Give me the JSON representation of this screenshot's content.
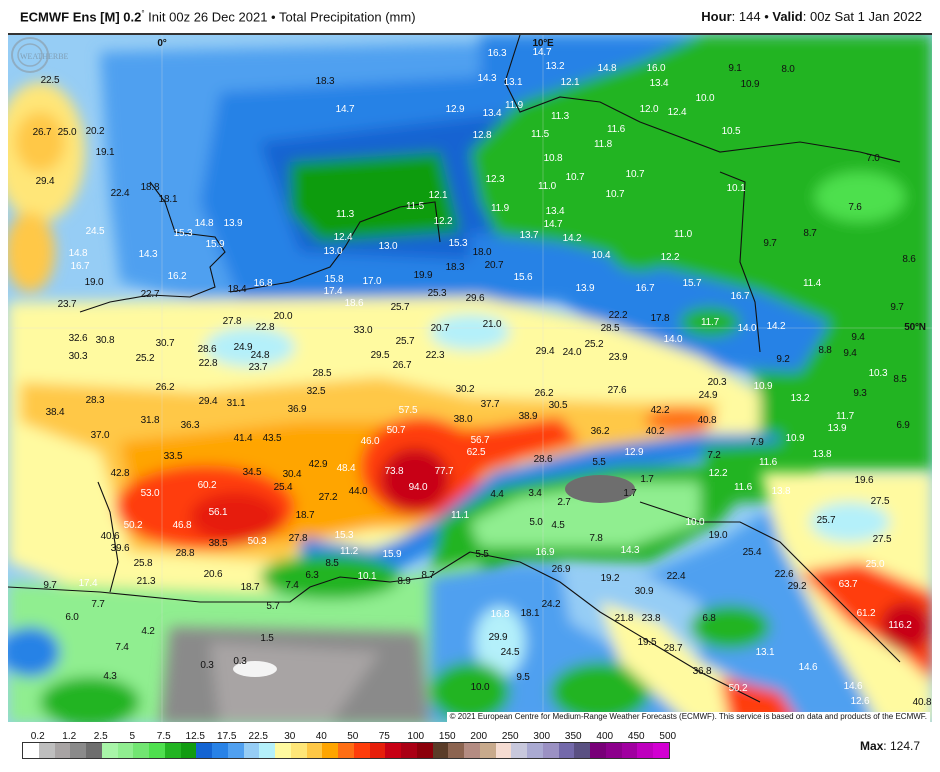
{
  "header": {
    "model": "ECMWF Ens [M] 0.2",
    "degree": "°",
    "init": "Init 00z 26 Dec 2021",
    "separator": "•",
    "product": "Total Precipitation (mm)",
    "hour_label": "Hour",
    "hour_value": ": 144",
    "valid_label": "Valid",
    "valid_value": ": 00z Sat 1 Jan 2022"
  },
  "map": {
    "graticule_labels": [
      "0°",
      "10°E",
      "50°N"
    ],
    "labels": [
      "18.3",
      "14.7",
      "12.9",
      "22.5",
      "20.2",
      "26.7",
      "25.0",
      "19.1",
      "29.4",
      "22.4",
      "18.8",
      "18.1",
      "24.5",
      "14.8",
      "13.9",
      "15.3",
      "15.9",
      "14.8",
      "16.7",
      "14.3",
      "16.2",
      "19.0",
      "22.7",
      "23.7",
      "18.4",
      "16.8",
      "15.8",
      "17.4",
      "18.6",
      "17.0",
      "11.3",
      "11.5",
      "12.1",
      "12.2",
      "12.4",
      "13.0",
      "13.0",
      "15.3",
      "18.3",
      "19.9",
      "25.3",
      "27.8",
      "22.8",
      "20.0",
      "32.6",
      "30.8",
      "30.3",
      "30.7",
      "28.6",
      "24.9",
      "24.8",
      "25.2",
      "22.8",
      "23.7",
      "33.0",
      "25.7",
      "25.7",
      "20.7",
      "29.5",
      "26.7",
      "22.3",
      "28.5",
      "16.3",
      "14.7",
      "14.3",
      "13.1",
      "13.2",
      "12.1",
      "14.8",
      "16.0",
      "13.4",
      "9.1",
      "8.0",
      "10.9",
      "10.0",
      "11.9",
      "11.3",
      "12.0",
      "12.4",
      "13.4",
      "12.8",
      "11.5",
      "11.6",
      "11.8",
      "10.5",
      "10.8",
      "12.3",
      "11.0",
      "10.7",
      "10.7",
      "10.7",
      "10.1",
      "7.0",
      "7.6",
      "11.9",
      "13.4",
      "13.7",
      "14.7",
      "14.2",
      "18.0",
      "20.7",
      "15.6",
      "10.4",
      "11.0",
      "12.2",
      "9.7",
      "8.7",
      "8.6",
      "13.9",
      "16.7",
      "15.7",
      "11.4",
      "16.7",
      "9.7",
      "29.6",
      "21.0",
      "22.2",
      "17.8",
      "11.7",
      "14.0",
      "14.2",
      "28.5",
      "14.0",
      "9.4",
      "8.8",
      "9.4",
      "29.4",
      "24.0",
      "25.2",
      "23.9",
      "9.2",
      "10.3",
      "26.2",
      "32.5",
      "28.3",
      "29.4",
      "31.1",
      "36.9",
      "30.2",
      "38.4",
      "31.8",
      "36.3",
      "57.5",
      "37.0",
      "41.4",
      "43.5",
      "50.7",
      "46.0",
      "33.5",
      "38.0",
      "42.9",
      "48.4",
      "34.5",
      "30.4",
      "42.8",
      "73.8",
      "77.7",
      "53.0",
      "60.2",
      "25.4",
      "27.2",
      "44.0",
      "94.0",
      "56.1",
      "18.7",
      "11.1",
      "50.2",
      "46.8",
      "40.6",
      "39.6",
      "38.5",
      "50.3",
      "27.8",
      "15.3",
      "28.8",
      "11.2",
      "15.9",
      "25.8",
      "8.5",
      "20.6",
      "6.3",
      "10.1",
      "8.9",
      "8.7",
      "17.4",
      "21.3",
      "18.7",
      "7.4",
      "9.7",
      "7.7",
      "6.0",
      "5.7",
      "4.2",
      "1.5",
      "7.4",
      "0.3",
      "0.3",
      "4.3",
      "20.3",
      "10.9",
      "8.5",
      "27.6",
      "26.2",
      "30.5",
      "24.9",
      "9.3",
      "37.7",
      "42.2",
      "13.2",
      "38.9",
      "40.8",
      "11.7",
      "6.9",
      "36.2",
      "40.2",
      "10.9",
      "13.9",
      "56.7",
      "62.5",
      "7.9",
      "13.8",
      "12.9",
      "7.2",
      "11.6",
      "28.6",
      "5.5",
      "12.2",
      "19.6",
      "1.7",
      "11.6",
      "13.8",
      "4.4",
      "3.4",
      "2.7",
      "1.7",
      "27.5",
      "5.0",
      "4.5",
      "10.0",
      "25.7",
      "19.0",
      "7.8",
      "27.5",
      "14.3",
      "16.9",
      "25.4",
      "5.5",
      "26.9",
      "22.4",
      "25.0",
      "19.2",
      "22.6",
      "30.9",
      "63.7",
      "29.2",
      "24.2",
      "16.8",
      "18.1",
      "61.2",
      "21.8",
      "23.8",
      "6.8",
      "116.2",
      "29.9",
      "24.5",
      "19.5",
      "28.7",
      "13.1",
      "14.6",
      "36.8",
      "9.5",
      "10.0",
      "50.2",
      "14.6",
      "12.6",
      "40.8"
    ],
    "logo_text": "WeatherBELL",
    "copyright": "© 2021 European Centre for Medium-Range Weather Forecasts (ECMWF). This service is based on data and products of the ECMWF."
  },
  "legend": {
    "ticks": [
      "0.2",
      "1.2",
      "2.5",
      "5",
      "7.5",
      "12.5",
      "17.5",
      "22.5",
      "30",
      "40",
      "50",
      "75",
      "100",
      "150",
      "200",
      "250",
      "300",
      "350",
      "400",
      "450",
      "500"
    ],
    "colors": [
      "#ffffff",
      "#bebebe",
      "#a8a4a4",
      "#8a8a8a",
      "#6e6e6e",
      "#a8f5a8",
      "#90ee90",
      "#72e672",
      "#4ee04e",
      "#22b422",
      "#119c11",
      "#1464d2",
      "#2882e6",
      "#50a0f0",
      "#96cdf5",
      "#b4f0fa",
      "#fffaa0",
      "#ffe678",
      "#ffc846",
      "#ffa500",
      "#ff6e14",
      "#ff3c0a",
      "#e61e0a",
      "#c80014",
      "#aa0014",
      "#8c000a",
      "#5a3c28",
      "#8c6450",
      "#b48c82",
      "#c8aa8c",
      "#f5dcd2",
      "#c8c8dc",
      "#aaaad2",
      "#9b91c3",
      "#7369aa",
      "#5a5082",
      "#780078",
      "#8c008c",
      "#a000a0",
      "#be00be",
      "#d200d2"
    ],
    "max_label": "Max",
    "max_value": ": 124.7"
  }
}
